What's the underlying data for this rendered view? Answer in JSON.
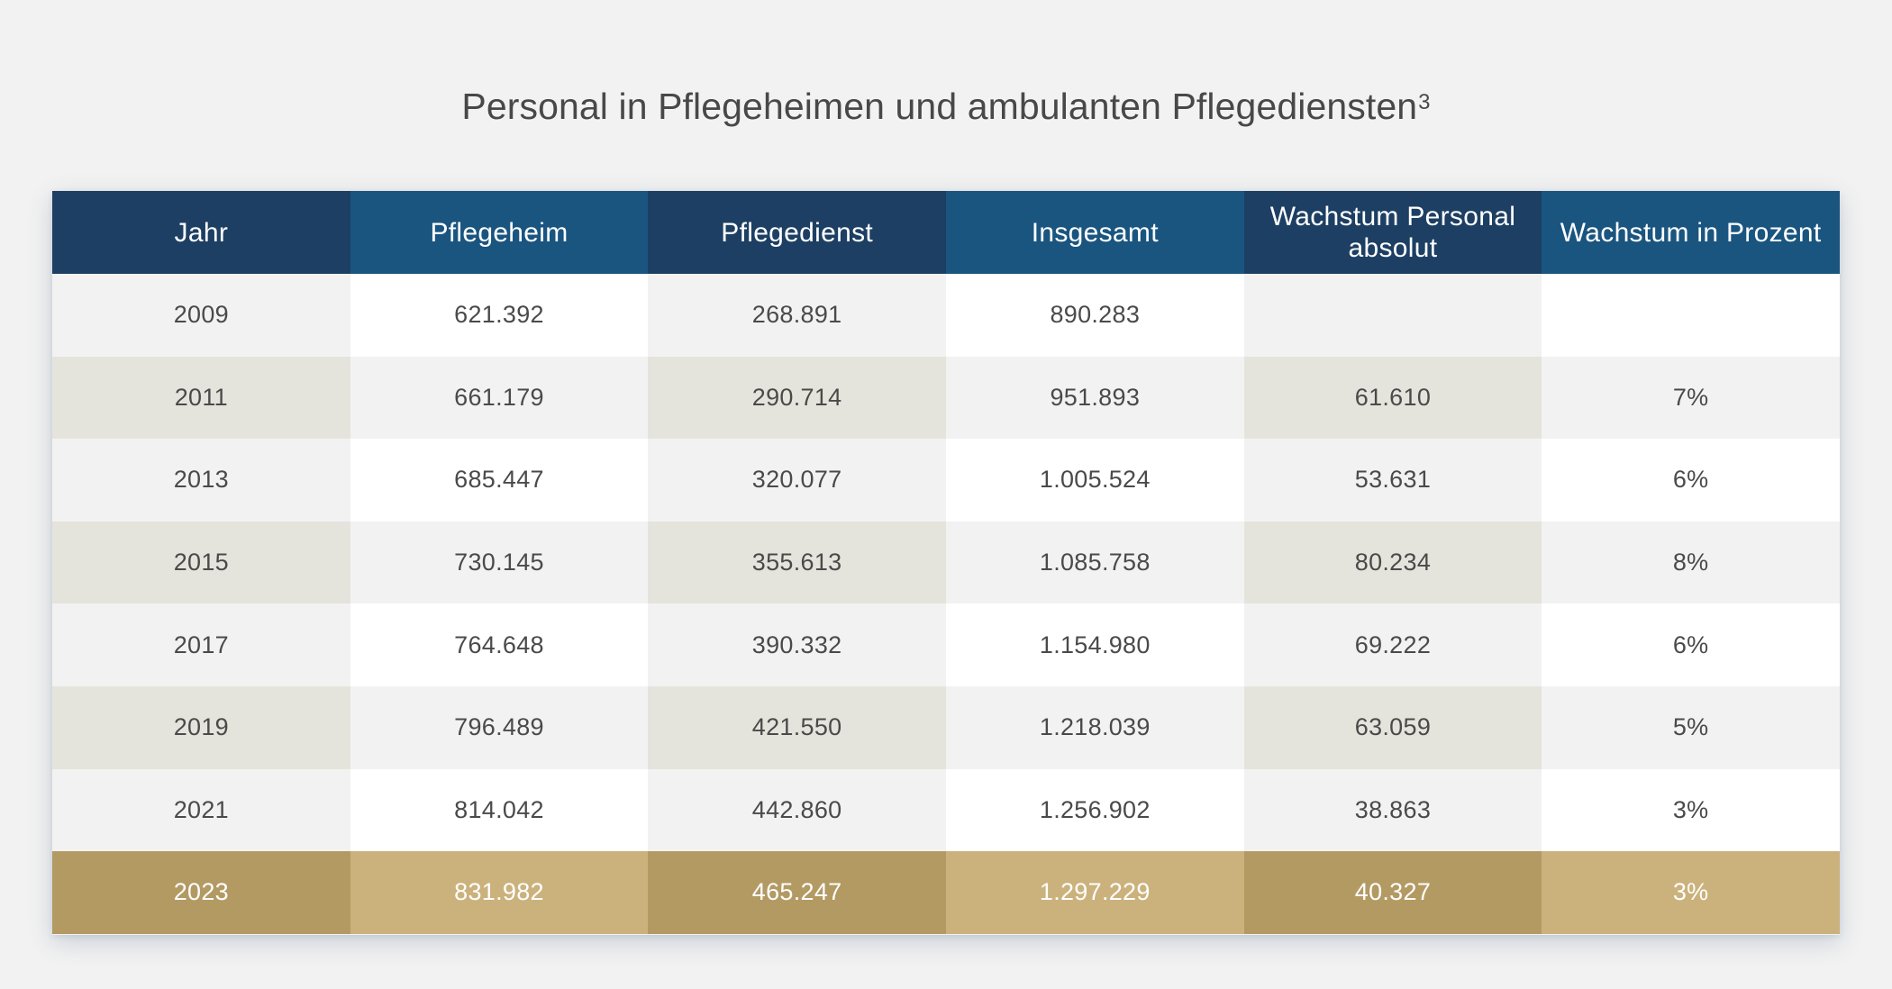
{
  "title": "Personal in Pflegeheimen und ambulanten Pflegediensten",
  "title_footnote": "3",
  "colors": {
    "background": "#f2f2f2",
    "header_dark": "#1d3f63",
    "header_light": "#1a5580",
    "highlight_dark": "#b39a63",
    "highlight_light": "#cbb27c",
    "stripe_beige": "#e5e4dc"
  },
  "chart_data": {
    "type": "table",
    "title": "Personal in Pflegeheimen und ambulanten Pflegediensten",
    "columns": [
      "Jahr",
      "Pflegeheim",
      "Pflegedienst",
      "Insgesamt",
      "Wachstum Personal absolut",
      "Wachstum in Prozent"
    ],
    "rows": [
      [
        "2009",
        "621.392",
        "268.891",
        "890.283",
        "",
        ""
      ],
      [
        "2011",
        "661.179",
        "290.714",
        "951.893",
        "61.610",
        "7%"
      ],
      [
        "2013",
        "685.447",
        "320.077",
        "1.005.524",
        "53.631",
        "6%"
      ],
      [
        "2015",
        "730.145",
        "355.613",
        "1.085.758",
        "80.234",
        "8%"
      ],
      [
        "2017",
        "764.648",
        "390.332",
        "1.154.980",
        "69.222",
        "6%"
      ],
      [
        "2019",
        "796.489",
        "421.550",
        "1.218.039",
        "63.059",
        "5%"
      ],
      [
        "2021",
        "814.042",
        "442.860",
        "1.256.902",
        "38.863",
        "3%"
      ],
      [
        "2023",
        "831.982",
        "465.247",
        "1.297.229",
        "40.327",
        "3%"
      ]
    ],
    "highlighted_row": "2023"
  }
}
